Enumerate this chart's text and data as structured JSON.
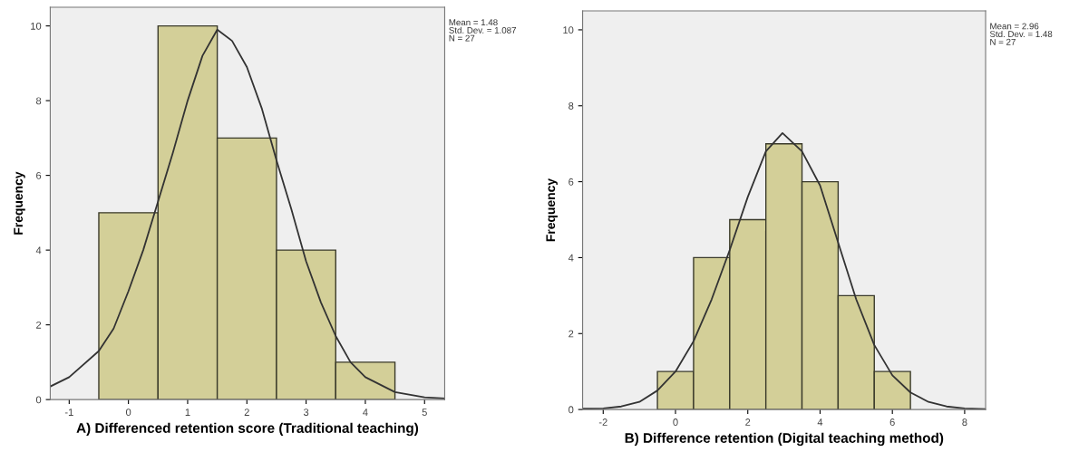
{
  "chart_data": [
    {
      "type": "histogram",
      "xlabel": "A) Differenced retention score (Traditional teaching)",
      "ylabel": "Frequency",
      "bins": [
        -0.5,
        0.5,
        1.5,
        2.5,
        3.5,
        4.5
      ],
      "values": [
        5,
        10,
        7,
        4,
        1
      ],
      "color": "#d3cf98",
      "xlim": [
        -1.32,
        5.34
      ],
      "xticks": [
        -1,
        0,
        1,
        2,
        3,
        4,
        5
      ],
      "ylim": [
        0,
        10.5
      ],
      "yticks": [
        0,
        2,
        4,
        6,
        8,
        10
      ],
      "grid": false,
      "annotations": [
        "Mean = 1.48\nStd. Dev. = 1.087\nN = 27"
      ],
      "series": [
        {
          "type": "line",
          "color": "#333333",
          "x": [
            -1.32,
            -1,
            -0.5,
            -0.25,
            0,
            0.25,
            0.5,
            0.75,
            1,
            1.25,
            1.5,
            1.75,
            2,
            2.25,
            2.5,
            2.75,
            3,
            3.25,
            3.5,
            3.75,
            4,
            4.5,
            5,
            5.34
          ],
          "values": [
            0.35,
            0.6,
            1.3,
            1.9,
            2.9,
            4.0,
            5.3,
            6.6,
            8.0,
            9.2,
            9.9,
            9.6,
            8.9,
            7.8,
            6.4,
            5.1,
            3.7,
            2.6,
            1.7,
            1.0,
            0.6,
            0.2,
            0.06,
            0.03
          ]
        }
      ]
    },
    {
      "type": "histogram",
      "xlabel": "B) Difference retention (Digital teaching method)",
      "ylabel": "Frequency",
      "bins": [
        -0.5,
        0.5,
        1.5,
        2.5,
        3.5,
        4.5,
        5.5,
        6.5
      ],
      "values": [
        1,
        4,
        5,
        7,
        6,
        3,
        1
      ],
      "color": "#d3cf98",
      "xlim": [
        -2.57,
        8.58
      ],
      "xticks": [
        -2,
        0,
        2,
        4,
        6,
        8
      ],
      "ylim": [
        0,
        10.5
      ],
      "yticks": [
        0,
        2,
        4,
        6,
        8,
        10
      ],
      "grid": false,
      "annotations": [
        "Mean = 2.96\nStd. Dev. = 1.48\nN = 27"
      ],
      "series": [
        {
          "type": "line",
          "color": "#333333",
          "x": [
            -2.57,
            -2,
            -1.5,
            -1,
            -0.5,
            0,
            0.5,
            1,
            1.5,
            2,
            2.5,
            2.96,
            3.5,
            4,
            4.5,
            5,
            5.5,
            6,
            6.5,
            7,
            7.5,
            8,
            8.58
          ],
          "values": [
            0.02,
            0.03,
            0.08,
            0.2,
            0.5,
            1.0,
            1.8,
            2.9,
            4.2,
            5.6,
            6.8,
            7.28,
            6.8,
            5.9,
            4.4,
            2.9,
            1.7,
            0.9,
            0.45,
            0.2,
            0.08,
            0.03,
            0.01
          ]
        }
      ]
    }
  ]
}
